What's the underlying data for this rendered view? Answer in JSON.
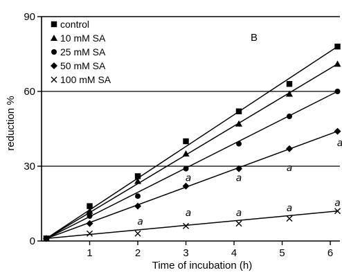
{
  "chart_data": {
    "type": "line",
    "panel_label": "B",
    "xlabel": "Time of incubation (h)",
    "ylabel": "reduction %",
    "xlim": [
      0,
      6.2
    ],
    "ylim": [
      0,
      90
    ],
    "x_ticks": [
      1,
      2,
      3,
      4,
      5,
      6
    ],
    "y_ticks": [
      0,
      30,
      60,
      90
    ],
    "grid": "horizontal lines at 30 and 60",
    "legend_placement": "top-left",
    "series": [
      {
        "name": "control",
        "marker": "square",
        "x": [
          0.1,
          1.0,
          2.0,
          3.0,
          4.1,
          5.15,
          6.15
        ],
        "y": [
          1,
          14,
          26,
          40,
          52,
          63,
          78
        ],
        "fit": [
          [
            0.1,
            1
          ],
          [
            6.15,
            78
          ]
        ]
      },
      {
        "name": "10 mM SA",
        "marker": "triangle",
        "x": [
          0.1,
          1.0,
          2.0,
          3.0,
          4.1,
          5.15,
          6.15
        ],
        "y": [
          1,
          12,
          24,
          35,
          47,
          59,
          71
        ],
        "fit": [
          [
            0.1,
            1
          ],
          [
            6.15,
            71
          ]
        ]
      },
      {
        "name": "25 mM SA",
        "marker": "circle",
        "x": [
          0.1,
          1.0,
          2.0,
          3.0,
          4.1,
          5.15,
          6.15
        ],
        "y": [
          1,
          10,
          18,
          29,
          39,
          50,
          60
        ],
        "fit": [
          [
            0.1,
            1
          ],
          [
            6.15,
            60
          ]
        ]
      },
      {
        "name": "50 mM SA",
        "marker": "diamond",
        "x": [
          0.1,
          1.0,
          2.0,
          3.0,
          4.1,
          5.15,
          6.15
        ],
        "y": [
          1,
          7,
          14,
          22,
          29,
          37,
          44
        ],
        "fit": [
          [
            0.1,
            1
          ],
          [
            6.15,
            44
          ]
        ]
      },
      {
        "name": "100 mM SA",
        "marker": "x",
        "x": [
          0.1,
          1.0,
          2.0,
          3.0,
          4.1,
          5.15,
          6.15
        ],
        "y": [
          1,
          3,
          3,
          6,
          7,
          9,
          12
        ],
        "fit": [
          [
            0.1,
            1
          ],
          [
            6.15,
            12
          ]
        ]
      }
    ],
    "annotations": [
      {
        "text": "a",
        "x": 2.05,
        "y": 6.5
      },
      {
        "text": "a",
        "x": 3.05,
        "y": 10
      },
      {
        "text": "a",
        "x": 4.1,
        "y": 10
      },
      {
        "text": "a",
        "x": 3.05,
        "y": 24
      },
      {
        "text": "a",
        "x": 4.1,
        "y": 24
      },
      {
        "text": "a",
        "x": 5.15,
        "y": 12
      },
      {
        "text": "a",
        "x": 5.15,
        "y": 28
      },
      {
        "text": "a",
        "x": 6.15,
        "y": 14
      },
      {
        "text": "a",
        "x": 6.2,
        "y": 38
      }
    ]
  }
}
